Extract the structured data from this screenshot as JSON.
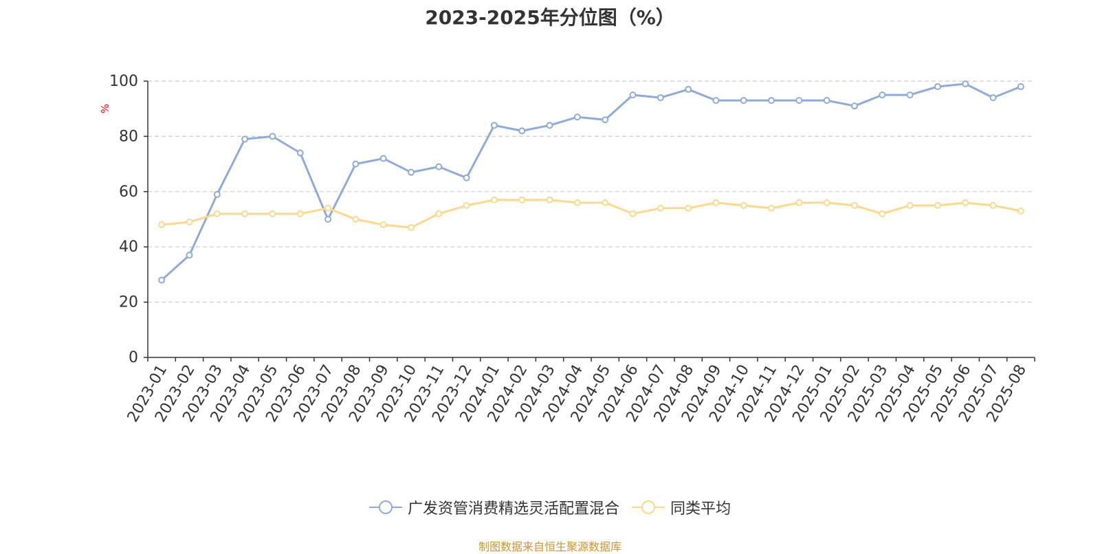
{
  "chart_data": {
    "type": "line",
    "title": "2023-2025年分位图（%）",
    "ylabel": "%",
    "xlabel": "",
    "ylim": [
      0,
      100
    ],
    "yticks": [
      0,
      20,
      40,
      60,
      80,
      100
    ],
    "grid": true,
    "legend_position": "bottom-center",
    "categories": [
      "2023-01",
      "2023-02",
      "2023-03",
      "2023-04",
      "2023-05",
      "2023-06",
      "2023-07",
      "2023-08",
      "2023-09",
      "2023-10",
      "2023-11",
      "2023-12",
      "2024-01",
      "2024-02",
      "2024-03",
      "2024-04",
      "2024-05",
      "2024-06",
      "2024-07",
      "2024-08",
      "2024-09",
      "2024-10",
      "2024-11",
      "2024-12",
      "2025-01",
      "2025-02",
      "2025-03",
      "2025-04",
      "2025-05",
      "2025-06",
      "2025-07",
      "2025-08"
    ],
    "series": [
      {
        "name": "广发资管消费精选灵活配置混合",
        "color": "#8eaadb",
        "values": [
          28,
          37,
          59,
          79,
          80,
          74,
          50,
          70,
          72,
          67,
          69,
          65,
          84,
          82,
          84,
          87,
          86,
          95,
          94,
          97,
          93,
          93,
          93,
          93,
          93,
          91,
          95,
          95,
          98,
          99,
          94,
          98
        ]
      },
      {
        "name": "同类平均",
        "color": "#fdd88a",
        "values": [
          48,
          49,
          52,
          52,
          52,
          52,
          54,
          50,
          48,
          47,
          52,
          55,
          57,
          57,
          57,
          56,
          56,
          52,
          54,
          54,
          56,
          55,
          54,
          56,
          56,
          55,
          52,
          55,
          55,
          56,
          55,
          53
        ]
      }
    ]
  },
  "source": "制图数据来自恒生聚源数据库"
}
